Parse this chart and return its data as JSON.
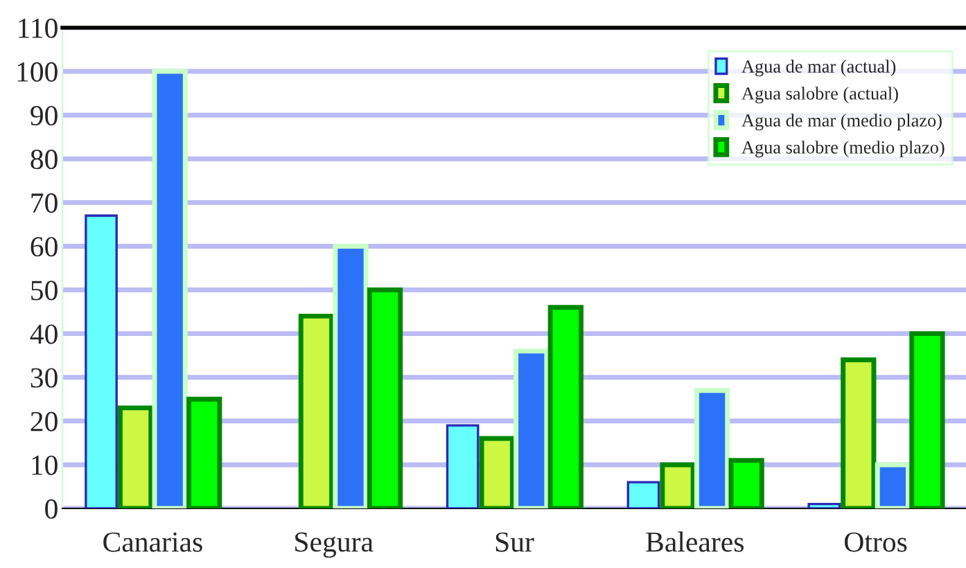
{
  "chart_data": {
    "type": "bar",
    "categories": [
      "Canarias",
      "Segura",
      "Sur",
      "Baleares",
      "Otros"
    ],
    "series": [
      {
        "name": "Agua de mar (actual)",
        "color": "#66ffff",
        "values": [
          67,
          null,
          19,
          6,
          1
        ]
      },
      {
        "name": "Agua salobre (actual)",
        "color": "#ccf844",
        "values": [
          23,
          44,
          16,
          10,
          34
        ]
      },
      {
        "name": "Agua de mar (medio plazo)",
        "color": "#2c72f8",
        "values": [
          100,
          60,
          36,
          27,
          10
        ]
      },
      {
        "name": "Agua salobre (medio plazo)",
        "color": "#00ff00",
        "values": [
          25,
          50,
          46,
          11,
          40
        ]
      }
    ],
    "ylim": [
      0,
      110
    ],
    "yticks": [
      0,
      10,
      20,
      30,
      40,
      50,
      60,
      70,
      80,
      90,
      100,
      110
    ],
    "grid": "y",
    "legend": "top right"
  }
}
